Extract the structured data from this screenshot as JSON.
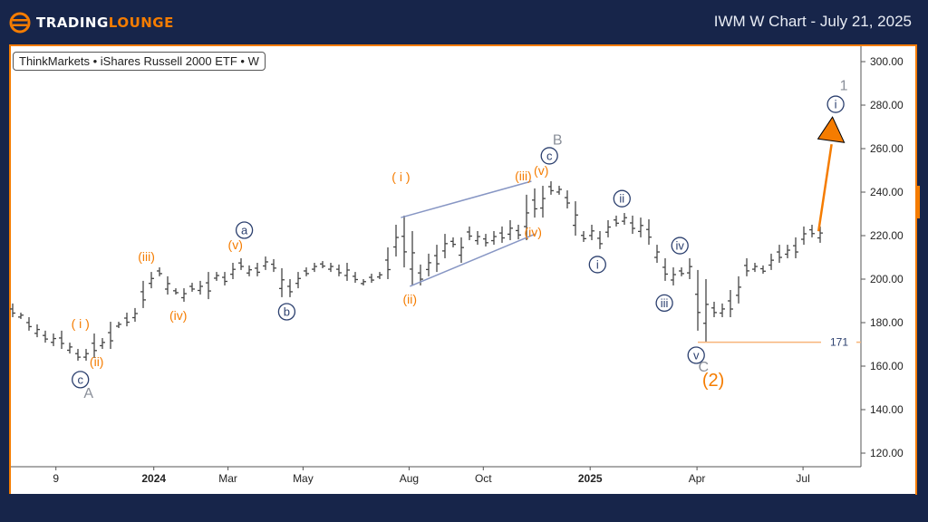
{
  "header": {
    "logo_text_a": "TRADING",
    "logo_text_b": "LOUNGE",
    "title": "IWM W Chart - July 21, 2025"
  },
  "legend": "ThinkMarkets • iShares Russell 2000 ETF • W",
  "colors": {
    "header_bg": "#17254a",
    "accent": "#f57c00",
    "wave_navy": "#2b3f6e",
    "wedge": "#8796c4",
    "grey": "#8a8f99"
  },
  "chart_data": {
    "type": "ohlc",
    "title": "IWM W Chart - July 21, 2025",
    "ylim": [
      110,
      308
    ],
    "y_ticks": [
      120,
      140,
      160,
      180,
      200,
      220,
      240,
      260,
      280,
      300
    ],
    "y_tick_labels": [
      "120.00",
      "140.00",
      "160.00",
      "180.00",
      "200.00",
      "220.00",
      "240.00",
      "260.00",
      "280.00",
      "300.00"
    ],
    "x_ticks": [
      {
        "week": 5.3,
        "label": "9",
        "bold": false
      },
      {
        "week": 17.3,
        "label": "2024",
        "bold": true
      },
      {
        "week": 26.4,
        "label": "Mar",
        "bold": false
      },
      {
        "week": 35.6,
        "label": "May",
        "bold": false
      },
      {
        "week": 48.6,
        "label": "Aug",
        "bold": false
      },
      {
        "week": 57.7,
        "label": "Oct",
        "bold": false
      },
      {
        "week": 70.8,
        "label": "2025",
        "bold": true
      },
      {
        "week": 83.9,
        "label": "Apr",
        "bold": false
      },
      {
        "week": 96.9,
        "label": "Jul",
        "bold": false
      }
    ],
    "bars_high_low": [
      [
        188.8,
        182.5
      ],
      [
        184.6,
        181.7
      ],
      [
        182.5,
        176.3
      ],
      [
        179.2,
        173.3
      ],
      [
        176.3,
        170.8
      ],
      [
        175,
        169.2
      ],
      [
        176.3,
        167.9
      ],
      [
        170.8,
        165.8
      ],
      [
        167.9,
        162.5
      ],
      [
        167.9,
        162.5
      ],
      [
        175,
        163.8
      ],
      [
        172.9,
        167.9
      ],
      [
        180.4,
        167.9
      ],
      [
        180.4,
        177.5
      ],
      [
        184.6,
        178.3
      ],
      [
        186.7,
        180.4
      ],
      [
        199.2,
        186.7
      ],
      [
        203.3,
        195.8
      ],
      [
        205.4,
        201.3
      ],
      [
        201.3,
        192.9
      ],
      [
        195.8,
        192.9
      ],
      [
        195.8,
        189.6
      ],
      [
        198.3,
        194.2
      ],
      [
        199.2,
        192.9
      ],
      [
        203.3,
        190.8
      ],
      [
        203.3,
        199.2
      ],
      [
        203.3,
        197.1
      ],
      [
        207.5,
        200
      ],
      [
        209.6,
        204.2
      ],
      [
        206.3,
        201.3
      ],
      [
        207.5,
        201.3
      ],
      [
        210.4,
        204.2
      ],
      [
        209.2,
        203.3
      ],
      [
        205,
        191.7
      ],
      [
        200,
        191.7
      ],
      [
        203.3,
        195.8
      ],
      [
        205.4,
        201.3
      ],
      [
        207.5,
        203.3
      ],
      [
        208.3,
        205
      ],
      [
        207.5,
        203.3
      ],
      [
        206.7,
        201.3
      ],
      [
        207.5,
        199.2
      ],
      [
        203.3,
        198.3
      ],
      [
        200,
        197.1
      ],
      [
        202.5,
        198.3
      ],
      [
        203.3,
        200
      ],
      [
        214.6,
        200
      ],
      [
        225,
        210.4
      ],
      [
        229.2,
        205.4
      ],
      [
        222.1,
        197.1
      ],
      [
        206.7,
        197.1
      ],
      [
        211.7,
        201.3
      ],
      [
        215.8,
        203.3
      ],
      [
        220.8,
        209.6
      ],
      [
        219.2,
        214.6
      ],
      [
        219.2,
        207.5
      ],
      [
        224.2,
        217.9
      ],
      [
        222.1,
        215.8
      ],
      [
        220.8,
        215
      ],
      [
        222.1,
        215.8
      ],
      [
        224.2,
        216.7
      ],
      [
        227.1,
        217.9
      ],
      [
        225,
        218.3
      ],
      [
        238.8,
        217.9
      ],
      [
        241.7,
        228.3
      ],
      [
        242.9,
        228.3
      ],
      [
        245,
        238.8
      ],
      [
        242.9,
        238.8
      ],
      [
        240.8,
        232.5
      ],
      [
        235.8,
        220
      ],
      [
        222.1,
        217.1
      ],
      [
        225,
        217.9
      ],
      [
        222.1,
        213.8
      ],
      [
        227.1,
        219.2
      ],
      [
        229.2,
        224.2
      ],
      [
        230.4,
        225
      ],
      [
        229.2,
        220.8
      ],
      [
        228.3,
        219.2
      ],
      [
        227.5,
        215.8
      ],
      [
        215.8,
        207.5
      ],
      [
        209.6,
        199.2
      ],
      [
        205.4,
        197.1
      ],
      [
        205.4,
        201.3
      ],
      [
        209.6,
        200
      ],
      [
        204.2,
        176.3
      ],
      [
        200,
        171
      ],
      [
        189.6,
        182.5
      ],
      [
        188.8,
        182.5
      ],
      [
        195,
        182.5
      ],
      [
        201.3,
        188.8
      ],
      [
        209.6,
        201.3
      ],
      [
        207.5,
        203.3
      ],
      [
        206.3,
        202.5
      ],
      [
        211.7,
        204.2
      ],
      [
        215.8,
        207.5
      ],
      [
        215.8,
        209.6
      ],
      [
        219.2,
        209.6
      ],
      [
        224.2,
        215.8
      ],
      [
        225,
        219.2
      ],
      [
        224.2,
        216.7
      ]
    ],
    "wave_labels": [
      {
        "text": "( i )",
        "week": 8.3,
        "price": 179.6,
        "style": "orange"
      },
      {
        "text": "(ii)",
        "week": 10.3,
        "price": 162,
        "style": "orange"
      },
      {
        "text": "c",
        "week": 8.3,
        "price": 153.8,
        "style": "circle"
      },
      {
        "text": "A",
        "week": 9.3,
        "price": 147.5,
        "style": "grey"
      },
      {
        "text": "(iii)",
        "week": 16.4,
        "price": 210.4,
        "style": "orange"
      },
      {
        "text": "(iv)",
        "week": 20.3,
        "price": 183.3,
        "style": "orange"
      },
      {
        "text": "(v)",
        "week": 27.3,
        "price": 215.8,
        "style": "orange"
      },
      {
        "text": "a",
        "week": 28.4,
        "price": 222.5,
        "style": "circle"
      },
      {
        "text": "b",
        "week": 33.6,
        "price": 185,
        "style": "circle"
      },
      {
        "text": "( i )",
        "week": 47.6,
        "price": 247,
        "style": "orange"
      },
      {
        "text": "(ii)",
        "week": 48.7,
        "price": 190.8,
        "style": "orange"
      },
      {
        "text": "(iii)",
        "week": 62.6,
        "price": 247.5,
        "style": "orange"
      },
      {
        "text": "(v)",
        "week": 64.8,
        "price": 250,
        "style": "orange"
      },
      {
        "text": "(iv)",
        "week": 63.8,
        "price": 221.7,
        "style": "orange"
      },
      {
        "text": "c",
        "week": 65.8,
        "price": 256.7,
        "style": "circle"
      },
      {
        "text": "B",
        "week": 66.8,
        "price": 264,
        "style": "grey"
      },
      {
        "text": "i",
        "week": 71.7,
        "price": 206.7,
        "style": "circle"
      },
      {
        "text": "ii",
        "week": 74.7,
        "price": 237,
        "style": "circle"
      },
      {
        "text": "iii",
        "week": 79.9,
        "price": 189,
        "style": "circle"
      },
      {
        "text": "iv",
        "week": 81.8,
        "price": 215.4,
        "style": "circle"
      },
      {
        "text": "v",
        "week": 83.8,
        "price": 165,
        "style": "circle"
      },
      {
        "text": "C",
        "week": 84.7,
        "price": 159.6,
        "style": "grey"
      },
      {
        "text": "(2)",
        "week": 85.9,
        "price": 152.9,
        "style": "orange-big"
      },
      {
        "text": "i",
        "week": 100.9,
        "price": 280.4,
        "style": "circle"
      },
      {
        "text": "1",
        "week": 101.9,
        "price": 289,
        "style": "grey"
      }
    ],
    "wedge_lines": [
      {
        "from": [
          47.6,
          228.3
        ],
        "to": [
          63.6,
          245
        ]
      },
      {
        "from": [
          48.7,
          196.7
        ],
        "to": [
          64.1,
          220.8
        ]
      }
    ],
    "projection_arrow": {
      "from": [
        98.8,
        222
      ],
      "to": [
        100.4,
        262
      ]
    },
    "invalidation_level": {
      "price": 171,
      "label": "171",
      "from_week": 84
    }
  }
}
